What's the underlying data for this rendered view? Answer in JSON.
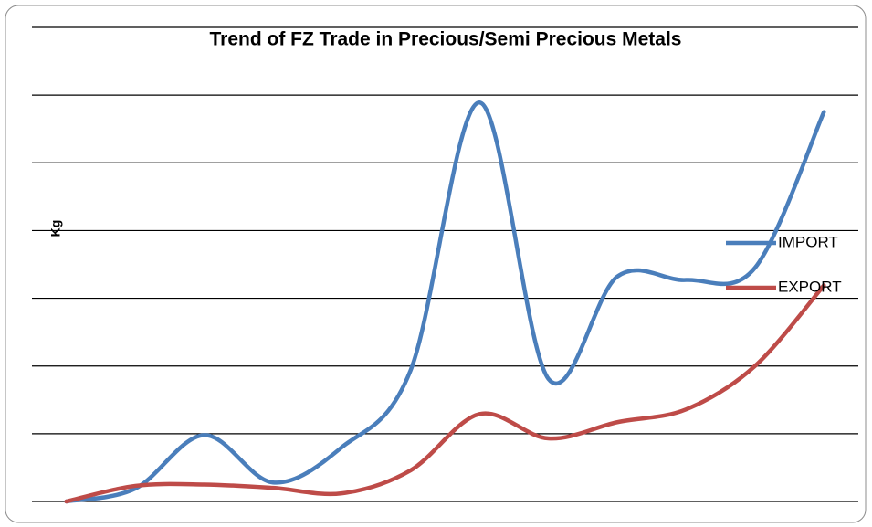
{
  "chart_data": {
    "type": "line",
    "title": "Trend of FZ Trade in Precious/Semi Precious Metals",
    "y_label": "Kg",
    "categories": [
      null,
      null,
      null,
      null,
      null,
      null,
      null,
      null,
      null,
      null,
      null,
      null
    ],
    "series": [
      {
        "name": "IMPORT",
        "color": "#4a7ebb",
        "values": [
          0,
          0.19,
          0.98,
          0.28,
          0.8,
          1.94,
          5.89,
          1.81,
          3.32,
          3.27,
          3.45,
          5.75
        ]
      },
      {
        "name": "EXPORT",
        "color": "#be4b48",
        "values": [
          0,
          0.23,
          0.25,
          0.2,
          0.12,
          0.46,
          1.29,
          0.93,
          1.17,
          1.36,
          2.0,
          3.19
        ]
      }
    ],
    "ylim": [
      0,
      7
    ],
    "yticks": [
      0,
      1,
      2,
      3,
      4,
      5,
      6,
      7
    ],
    "grid": true,
    "smooth": true,
    "legend": "right"
  }
}
